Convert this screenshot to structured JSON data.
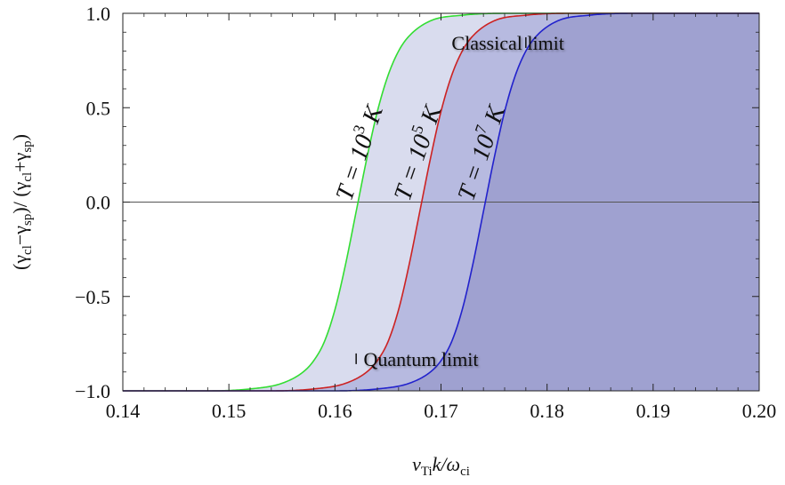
{
  "chart_data": {
    "type": "line",
    "title": "",
    "xlabel": "v_Ti k/ω_ci",
    "ylabel": "(γ_cl−γ_sp)/(γ_cl+γ_sp)",
    "xlim": [
      0.14,
      0.2
    ],
    "ylim": [
      -1.0,
      1.0
    ],
    "x_ticks": [
      "0.14",
      "0.15",
      "0.16",
      "0.17",
      "0.18",
      "0.19",
      "0.20"
    ],
    "y_ticks": [
      "−1.0",
      "−0.5",
      "0.0",
      "0.5",
      "1.0"
    ],
    "grid": false,
    "zero_line": true,
    "series": [
      {
        "name": "T = 10^3 K",
        "color": "#33dd33",
        "fill": "#d9dcee",
        "x": [
          0.14,
          0.148,
          0.152,
          0.155,
          0.157,
          0.158,
          0.159,
          0.16,
          0.161,
          0.162,
          0.163,
          0.164,
          0.165,
          0.166,
          0.167,
          0.169,
          0.172,
          0.176,
          0.2
        ],
        "y": [
          -1.0,
          -1.0,
          -0.99,
          -0.96,
          -0.9,
          -0.84,
          -0.74,
          -0.57,
          -0.33,
          -0.05,
          0.23,
          0.48,
          0.67,
          0.8,
          0.88,
          0.96,
          0.99,
          1.0,
          1.0
        ]
      },
      {
        "name": "T = 10^5 K",
        "color": "#cc2222",
        "fill": "#b7bae0",
        "x": [
          0.14,
          0.154,
          0.158,
          0.161,
          0.163,
          0.164,
          0.165,
          0.166,
          0.167,
          0.168,
          0.169,
          0.17,
          0.171,
          0.172,
          0.173,
          0.175,
          0.178,
          0.182,
          0.2
        ],
        "y": [
          -1.0,
          -1.0,
          -0.99,
          -0.96,
          -0.9,
          -0.84,
          -0.74,
          -0.57,
          -0.33,
          -0.05,
          0.23,
          0.48,
          0.67,
          0.8,
          0.88,
          0.96,
          0.99,
          1.0,
          1.0
        ]
      },
      {
        "name": "T = 10^7 K",
        "color": "#2222cc",
        "fill": "#9fa1d0",
        "x": [
          0.14,
          0.16,
          0.164,
          0.167,
          0.169,
          0.17,
          0.171,
          0.172,
          0.173,
          0.174,
          0.175,
          0.176,
          0.177,
          0.178,
          0.179,
          0.181,
          0.184,
          0.188,
          0.2
        ],
        "y": [
          -1.0,
          -1.0,
          -0.99,
          -0.96,
          -0.9,
          -0.84,
          -0.74,
          -0.57,
          -0.33,
          -0.05,
          0.23,
          0.48,
          0.67,
          0.8,
          0.88,
          0.96,
          0.99,
          1.0,
          1.0
        ]
      }
    ],
    "curve_labels": [
      {
        "base": "T = 10",
        "exp": "3",
        "unit": " K",
        "x": 0.1615,
        "y": 0.0
      },
      {
        "base": "T = 10",
        "exp": "5",
        "unit": " K",
        "x": 0.167,
        "y": 0.0
      },
      {
        "base": "T = 10",
        "exp": "7",
        "unit": " K",
        "x": 0.173,
        "y": 0.0
      }
    ],
    "annotations": [
      {
        "text": "Classical limit",
        "x": 0.171,
        "y": 0.845,
        "arrow_from": 0.178,
        "arrow_to": 0.1955,
        "arrow_y": 0.845,
        "direction": "right"
      },
      {
        "text": "Quantum limit",
        "x": 0.1627,
        "y": -0.83,
        "arrow_from": 0.162,
        "arrow_to": 0.1443,
        "arrow_y": -0.83,
        "direction": "left"
      }
    ]
  }
}
